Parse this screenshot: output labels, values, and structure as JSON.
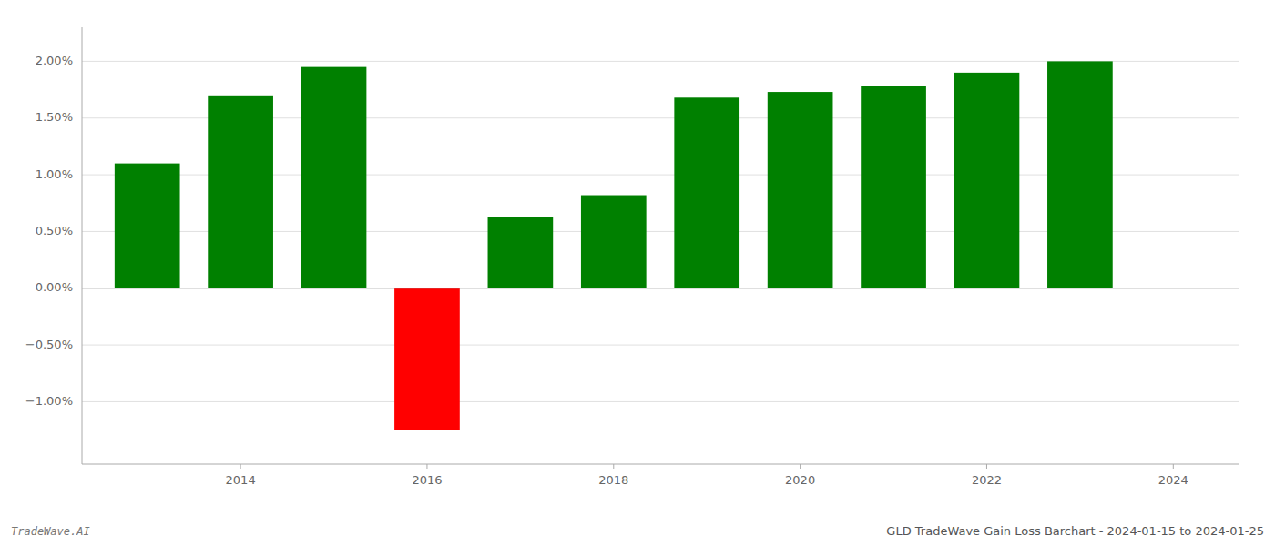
{
  "chart_data": {
    "type": "bar",
    "title": "GLD TradeWave Gain Loss Barchart - 2024-01-15 to 2024-01-25",
    "annotations": [
      "TradeWave.AI"
    ],
    "x": [
      2013,
      2014,
      2015,
      2016,
      2017,
      2018,
      2019,
      2020,
      2021,
      2022,
      2023
    ],
    "values": [
      0.011,
      0.017,
      0.0195,
      -0.0125,
      0.0063,
      0.0082,
      0.0168,
      0.0173,
      0.0178,
      0.019,
      0.02
    ],
    "colors": [
      "#008000",
      "#008000",
      "#008000",
      "#ff0000",
      "#008000",
      "#008000",
      "#008000",
      "#008000",
      "#008000",
      "#008000",
      "#008000"
    ],
    "xlim": [
      2012.3,
      2024.7
    ],
    "xticks": [
      2014,
      2016,
      2018,
      2020,
      2022,
      2024
    ],
    "ylim": [
      -0.0155,
      0.023
    ],
    "yticks": [
      {
        "value": -0.01,
        "label": "−1.00%"
      },
      {
        "value": -0.005,
        "label": "−0.50%"
      },
      {
        "value": 0.0,
        "label": "0.00%"
      },
      {
        "value": 0.005,
        "label": "0.50%"
      },
      {
        "value": 0.01,
        "label": "1.00%"
      },
      {
        "value": 0.015,
        "label": "1.50%"
      },
      {
        "value": 0.02,
        "label": "2.00%"
      }
    ],
    "grid": true
  }
}
